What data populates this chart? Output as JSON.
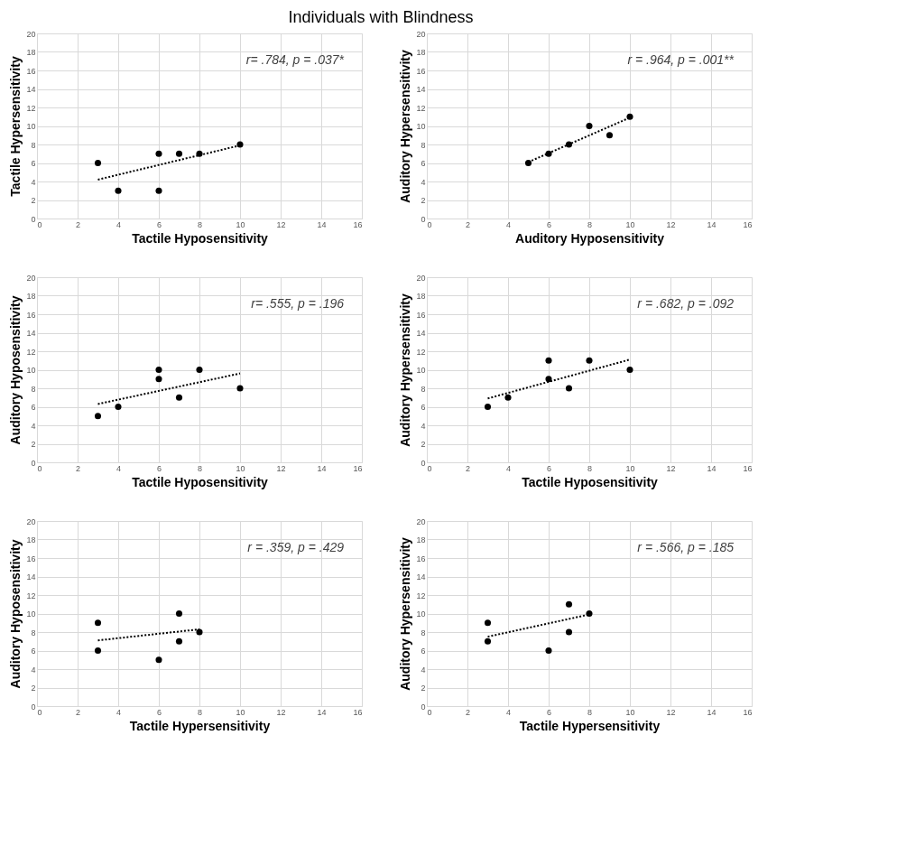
{
  "chart_data": [
    {
      "type": "scatter",
      "title": "Individuals with Blindness",
      "xlabel": "Tactile Hyposensitivity",
      "ylabel": "Tactile Hypersensitivity",
      "xlim": [
        0,
        16
      ],
      "ylim": [
        0,
        20
      ],
      "xticks": [
        0,
        2,
        4,
        6,
        8,
        10,
        12,
        14,
        16
      ],
      "yticks": [
        0,
        2,
        4,
        6,
        8,
        10,
        12,
        14,
        16,
        18,
        20
      ],
      "grid": true,
      "annotations": [
        "r= .784, p = .037*"
      ],
      "series": [
        {
          "type": "scatter",
          "color": "#000000",
          "marker": "circle",
          "x": [
            3,
            4,
            6,
            6,
            7,
            8,
            10
          ],
          "values": [
            6,
            3,
            7,
            3,
            7,
            7,
            8
          ]
        },
        {
          "type": "line",
          "color": "#000000",
          "marker": "none",
          "line_style": "dotted",
          "x": [
            3,
            10
          ],
          "values": [
            4.2,
            7.9
          ]
        }
      ]
    },
    {
      "type": "scatter",
      "xlabel": "Auditory Hyposensitivity",
      "ylabel": "Auditory Hypersensitivity",
      "xlim": [
        0,
        16
      ],
      "ylim": [
        0,
        20
      ],
      "xticks": [
        0,
        2,
        4,
        6,
        8,
        10,
        12,
        14,
        16
      ],
      "yticks": [
        0,
        2,
        4,
        6,
        8,
        10,
        12,
        14,
        16,
        18,
        20
      ],
      "grid": true,
      "annotations": [
        "r = .964, p = .001**"
      ],
      "series": [
        {
          "type": "scatter",
          "color": "#000000",
          "marker": "circle",
          "x": [
            5,
            6,
            7,
            8,
            9,
            10
          ],
          "values": [
            6,
            7,
            8,
            10,
            9,
            11
          ]
        },
        {
          "type": "line",
          "color": "#000000",
          "marker": "none",
          "line_style": "dotted",
          "x": [
            5,
            10
          ],
          "values": [
            6.1,
            10.9
          ]
        }
      ]
    },
    {
      "type": "scatter",
      "xlabel": "Tactile Hyposensitivity",
      "ylabel": "Auditory Hyposensitivity",
      "xlim": [
        0,
        16
      ],
      "ylim": [
        0,
        20
      ],
      "xticks": [
        0,
        2,
        4,
        6,
        8,
        10,
        12,
        14,
        16
      ],
      "yticks": [
        0,
        2,
        4,
        6,
        8,
        10,
        12,
        14,
        16,
        18,
        20
      ],
      "grid": true,
      "annotations": [
        "r= .555, p = .196"
      ],
      "series": [
        {
          "type": "scatter",
          "color": "#000000",
          "marker": "circle",
          "x": [
            3,
            4,
            6,
            6,
            7,
            8,
            10
          ],
          "values": [
            5,
            6,
            10,
            9,
            7,
            10,
            8
          ]
        },
        {
          "type": "line",
          "color": "#000000",
          "marker": "none",
          "line_style": "dotted",
          "x": [
            3,
            10
          ],
          "values": [
            6.3,
            9.6
          ]
        }
      ]
    },
    {
      "type": "scatter",
      "xlabel": "Tactile Hyposensitivity",
      "ylabel": "Auditory Hypersensitivity",
      "xlim": [
        0,
        16
      ],
      "ylim": [
        0,
        20
      ],
      "xticks": [
        0,
        2,
        4,
        6,
        8,
        10,
        12,
        14,
        16
      ],
      "yticks": [
        0,
        2,
        4,
        6,
        8,
        10,
        12,
        14,
        16,
        18,
        20
      ],
      "grid": true,
      "annotations": [
        "r = .682, p = .092"
      ],
      "series": [
        {
          "type": "scatter",
          "color": "#000000",
          "marker": "circle",
          "x": [
            3,
            4,
            6,
            6,
            7,
            8,
            10
          ],
          "values": [
            6,
            7,
            11,
            9,
            8,
            11,
            10
          ]
        },
        {
          "type": "line",
          "color": "#000000",
          "marker": "none",
          "line_style": "dotted",
          "x": [
            3,
            10
          ],
          "values": [
            6.9,
            11.1
          ]
        }
      ]
    },
    {
      "type": "scatter",
      "xlabel": "Tactile Hypersensitivity",
      "ylabel": "Auditory Hyposensitivity",
      "xlim": [
        0,
        16
      ],
      "ylim": [
        0,
        20
      ],
      "xticks": [
        0,
        2,
        4,
        6,
        8,
        10,
        12,
        14,
        16
      ],
      "yticks": [
        0,
        2,
        4,
        6,
        8,
        10,
        12,
        14,
        16,
        18,
        20
      ],
      "grid": true,
      "annotations": [
        "r = .359, p = .429"
      ],
      "series": [
        {
          "type": "scatter",
          "color": "#000000",
          "marker": "circle",
          "x": [
            3,
            3,
            6,
            7,
            7,
            8
          ],
          "values": [
            9,
            6,
            5,
            10,
            7,
            8
          ]
        },
        {
          "type": "line",
          "color": "#000000",
          "marker": "none",
          "line_style": "dotted",
          "x": [
            3,
            8
          ],
          "values": [
            7.1,
            8.3
          ]
        }
      ]
    },
    {
      "type": "scatter",
      "xlabel": "Tactile Hypersensitivity",
      "ylabel": "Auditory Hypersensitivity",
      "xlim": [
        0,
        16
      ],
      "ylim": [
        0,
        20
      ],
      "xticks": [
        0,
        2,
        4,
        6,
        8,
        10,
        12,
        14,
        16
      ],
      "yticks": [
        0,
        2,
        4,
        6,
        8,
        10,
        12,
        14,
        16,
        18,
        20
      ],
      "grid": true,
      "annotations": [
        "r = .566, p = .185"
      ],
      "series": [
        {
          "type": "scatter",
          "color": "#000000",
          "marker": "circle",
          "x": [
            3,
            3,
            6,
            7,
            7,
            8
          ],
          "values": [
            9,
            7,
            6,
            11,
            8,
            10
          ]
        },
        {
          "type": "line",
          "color": "#000000",
          "marker": "none",
          "line_style": "dotted",
          "x": [
            3,
            8
          ],
          "values": [
            7.5,
            9.9
          ]
        }
      ]
    }
  ]
}
